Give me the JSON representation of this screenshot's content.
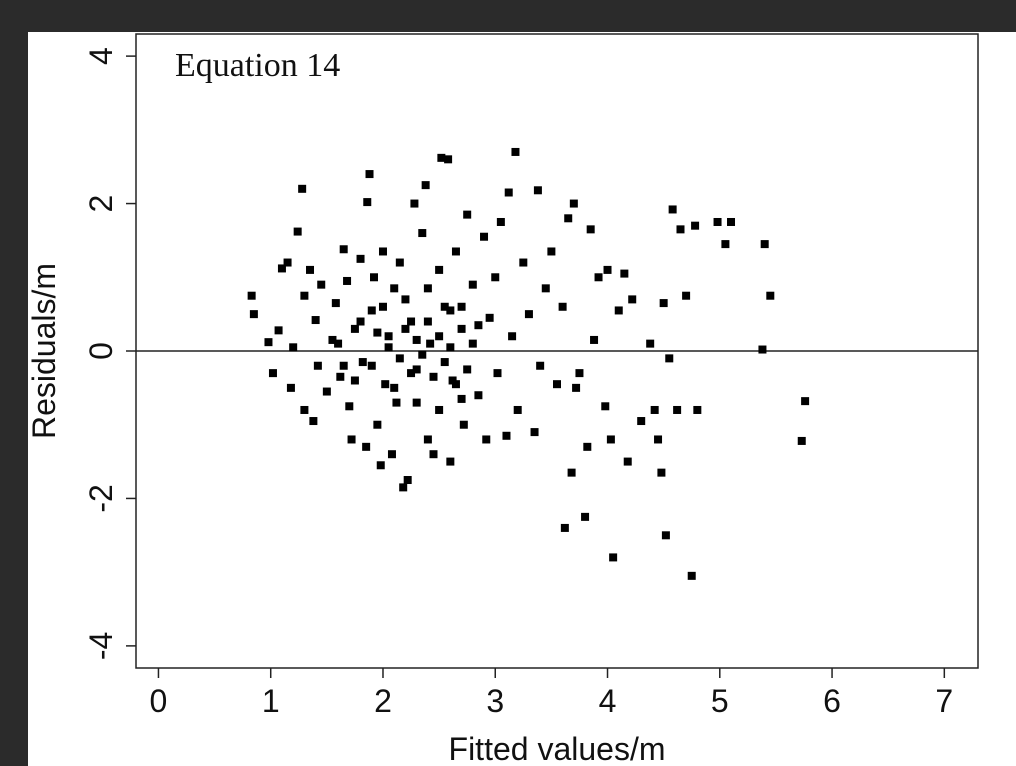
{
  "chart_data": {
    "type": "scatter",
    "title": "",
    "annotation": "Equation 14",
    "xlabel": "Fitted values/m",
    "ylabel": "Residuals/m",
    "xlim": [
      -0.2,
      7.3
    ],
    "ylim": [
      -4.3,
      4.3
    ],
    "xticks": [
      "0",
      "1",
      "2",
      "3",
      "4",
      "5",
      "6",
      "7"
    ],
    "yticks": [
      "-4",
      "-2",
      "0",
      "2",
      "4"
    ],
    "reference_line_y": 0,
    "grid": false,
    "legend": "none",
    "marker_color": "#000000",
    "series": [
      {
        "points": [
          [
            0.83,
            0.75
          ],
          [
            0.85,
            0.5
          ],
          [
            0.98,
            0.12
          ],
          [
            1.02,
            -0.3
          ],
          [
            1.07,
            0.28
          ],
          [
            1.1,
            1.12
          ],
          [
            1.15,
            1.2
          ],
          [
            1.18,
            -0.5
          ],
          [
            1.2,
            0.05
          ],
          [
            1.24,
            1.62
          ],
          [
            1.28,
            2.2
          ],
          [
            1.3,
            0.75
          ],
          [
            1.3,
            -0.8
          ],
          [
            1.35,
            1.1
          ],
          [
            1.38,
            -0.95
          ],
          [
            1.4,
            0.42
          ],
          [
            1.42,
            -0.2
          ],
          [
            1.45,
            0.9
          ],
          [
            1.5,
            -0.55
          ],
          [
            1.55,
            0.15
          ],
          [
            1.58,
            0.65
          ],
          [
            1.62,
            -0.35
          ],
          [
            1.65,
            1.38
          ],
          [
            1.68,
            0.95
          ],
          [
            1.7,
            -0.75
          ],
          [
            1.72,
            -1.2
          ],
          [
            1.75,
            0.3
          ],
          [
            1.8,
            1.25
          ],
          [
            1.82,
            -0.15
          ],
          [
            1.85,
            -1.3
          ],
          [
            1.86,
            2.02
          ],
          [
            1.88,
            2.4
          ],
          [
            1.9,
            0.55
          ],
          [
            1.92,
            1.0
          ],
          [
            1.95,
            -1.0
          ],
          [
            1.98,
            -1.55
          ],
          [
            2.0,
            1.35
          ],
          [
            2.02,
            -0.45
          ],
          [
            2.05,
            0.2
          ],
          [
            2.08,
            -1.4
          ],
          [
            2.1,
            0.85
          ],
          [
            2.12,
            -0.7
          ],
          [
            2.15,
            1.2
          ],
          [
            2.18,
            -1.85
          ],
          [
            2.22,
            -1.75
          ],
          [
            2.25,
            0.4
          ],
          [
            2.28,
            2.0
          ],
          [
            2.3,
            -0.25
          ],
          [
            2.35,
            1.6
          ],
          [
            2.38,
            2.25
          ],
          [
            2.4,
            -1.2
          ],
          [
            2.42,
            0.1
          ],
          [
            2.45,
            -1.4
          ],
          [
            2.5,
            1.1
          ],
          [
            2.52,
            2.62
          ],
          [
            2.55,
            0.6
          ],
          [
            2.58,
            2.6
          ],
          [
            2.6,
            -1.5
          ],
          [
            2.62,
            -0.4
          ],
          [
            2.65,
            1.35
          ],
          [
            2.7,
            0.3
          ],
          [
            2.72,
            -1.0
          ],
          [
            2.75,
            1.85
          ],
          [
            2.8,
            0.9
          ],
          [
            2.85,
            -0.6
          ],
          [
            2.9,
            1.55
          ],
          [
            2.92,
            -1.2
          ],
          [
            2.95,
            0.45
          ],
          [
            3.0,
            1.0
          ],
          [
            3.02,
            -0.3
          ],
          [
            3.05,
            1.75
          ],
          [
            3.1,
            -1.15
          ],
          [
            3.12,
            2.15
          ],
          [
            3.15,
            0.2
          ],
          [
            3.18,
            2.7
          ],
          [
            3.2,
            -0.8
          ],
          [
            3.25,
            1.2
          ],
          [
            3.3,
            0.5
          ],
          [
            3.35,
            -1.1
          ],
          [
            3.38,
            2.18
          ],
          [
            3.4,
            -0.2
          ],
          [
            3.45,
            0.85
          ],
          [
            3.5,
            1.35
          ],
          [
            3.55,
            -0.45
          ],
          [
            3.6,
            0.6
          ],
          [
            3.62,
            -2.4
          ],
          [
            3.65,
            1.8
          ],
          [
            3.68,
            -1.65
          ],
          [
            3.7,
            2.0
          ],
          [
            3.72,
            -0.5
          ],
          [
            3.75,
            -0.3
          ],
          [
            3.8,
            -2.25
          ],
          [
            3.82,
            -1.3
          ],
          [
            3.85,
            1.65
          ],
          [
            3.88,
            0.15
          ],
          [
            3.92,
            1.0
          ],
          [
            3.98,
            -0.75
          ],
          [
            4.0,
            1.1
          ],
          [
            4.03,
            -1.2
          ],
          [
            4.05,
            -2.8
          ],
          [
            4.1,
            0.55
          ],
          [
            4.15,
            1.05
          ],
          [
            4.18,
            -1.5
          ],
          [
            4.22,
            0.7
          ],
          [
            4.3,
            -0.95
          ],
          [
            4.38,
            0.1
          ],
          [
            4.42,
            -0.8
          ],
          [
            4.45,
            -1.2
          ],
          [
            4.48,
            -1.65
          ],
          [
            4.5,
            0.65
          ],
          [
            4.52,
            -2.5
          ],
          [
            4.55,
            -0.1
          ],
          [
            4.58,
            1.92
          ],
          [
            4.62,
            -0.8
          ],
          [
            4.65,
            1.65
          ],
          [
            4.7,
            0.75
          ],
          [
            4.75,
            -3.05
          ],
          [
            4.78,
            1.7
          ],
          [
            4.8,
            -0.8
          ],
          [
            4.98,
            1.75
          ],
          [
            5.05,
            1.45
          ],
          [
            5.1,
            1.75
          ],
          [
            5.38,
            0.02
          ],
          [
            5.4,
            1.45
          ],
          [
            5.45,
            0.75
          ],
          [
            5.73,
            -1.22
          ],
          [
            5.76,
            -0.68
          ],
          [
            2.05,
            0.05
          ],
          [
            2.15,
            -0.1
          ],
          [
            2.2,
            0.3
          ],
          [
            2.25,
            -0.3
          ],
          [
            2.3,
            0.15
          ],
          [
            2.35,
            -0.05
          ],
          [
            2.4,
            0.4
          ],
          [
            2.45,
            -0.35
          ],
          [
            2.5,
            0.2
          ],
          [
            2.55,
            -0.15
          ],
          [
            1.95,
            0.25
          ],
          [
            1.9,
            -0.2
          ],
          [
            2.6,
            0.05
          ],
          [
            2.65,
            -0.45
          ],
          [
            2.7,
            0.6
          ],
          [
            2.75,
            -0.25
          ],
          [
            2.8,
            0.1
          ],
          [
            2.85,
            0.35
          ],
          [
            2.2,
            0.7
          ],
          [
            2.3,
            -0.7
          ],
          [
            2.1,
            -0.5
          ],
          [
            2.4,
            0.85
          ],
          [
            2.5,
            -0.8
          ],
          [
            1.8,
            0.4
          ],
          [
            1.75,
            -0.4
          ],
          [
            2.0,
            0.6
          ],
          [
            2.6,
            0.55
          ],
          [
            2.7,
            -0.65
          ],
          [
            1.6,
            0.1
          ],
          [
            1.65,
            -0.2
          ]
        ]
      }
    ]
  }
}
